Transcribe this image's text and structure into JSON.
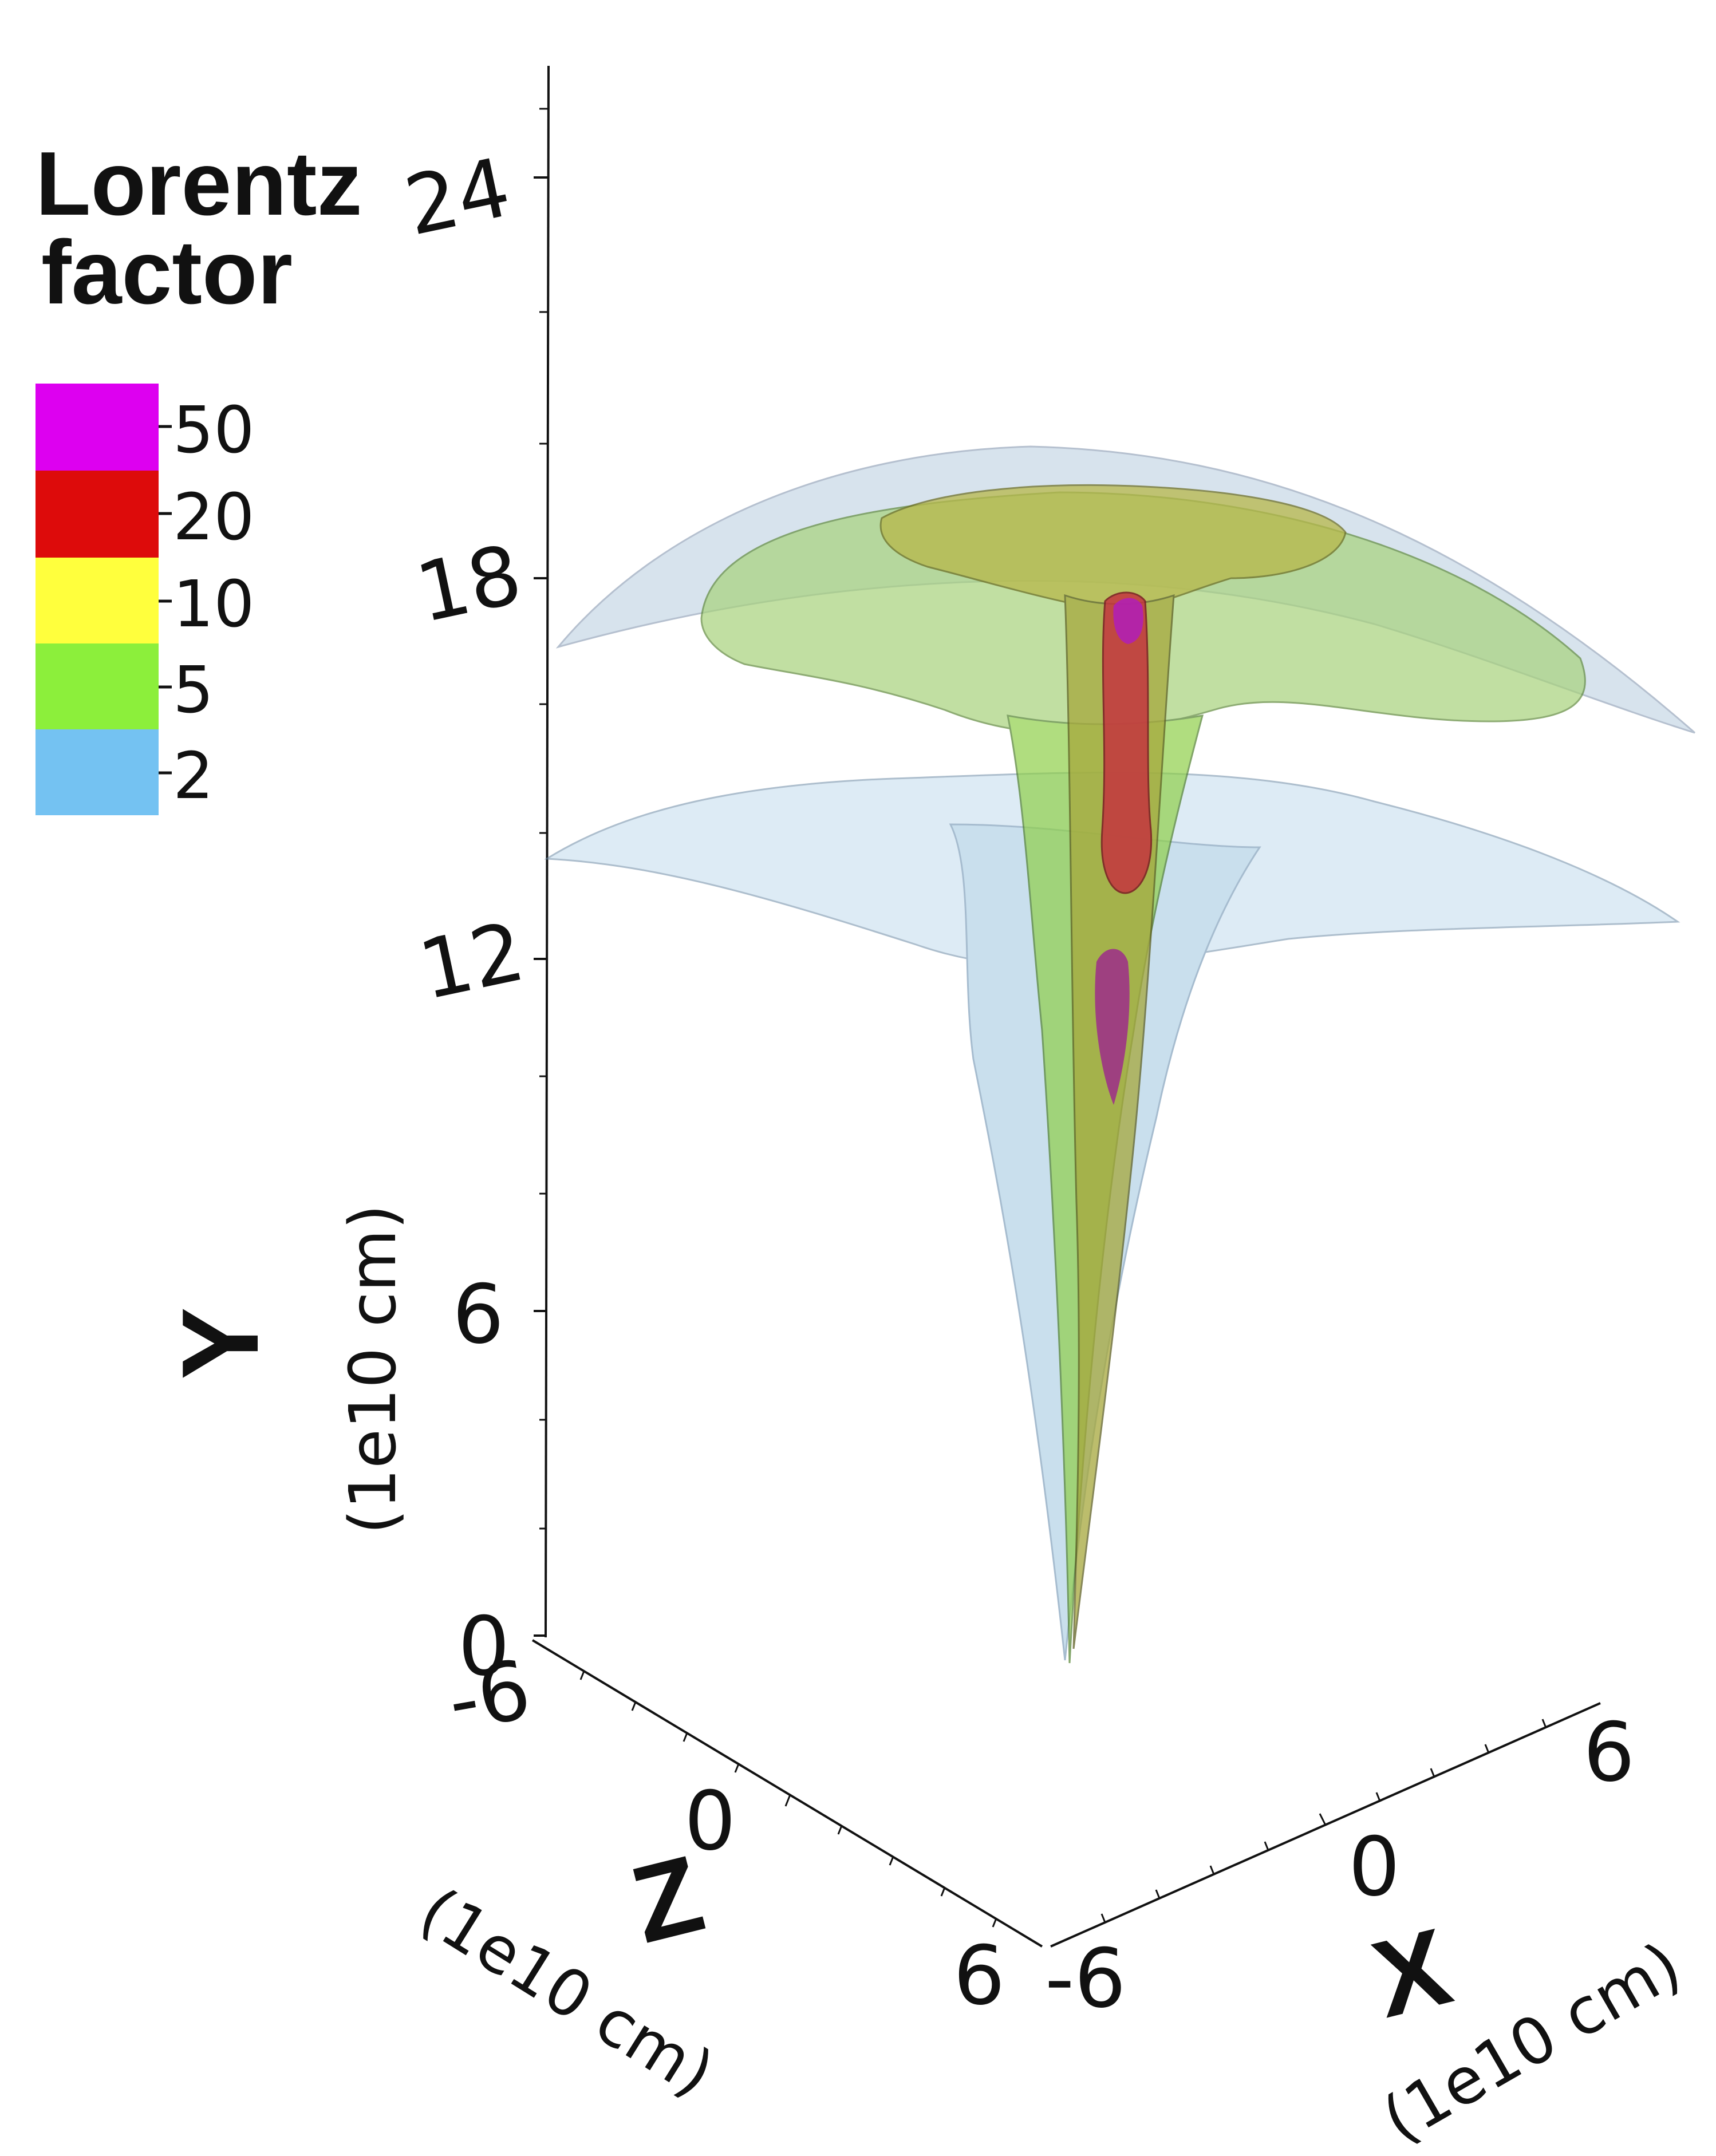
{
  "legend": {
    "title_line1": "Lorentz",
    "title_line2": "factor",
    "entries": [
      {
        "label": "50",
        "color": "#dd00f0"
      },
      {
        "label": "20",
        "color": "#dd0b0b"
      },
      {
        "label": "10",
        "color": "#ffff3d"
      },
      {
        "label": "5",
        "color": "#8cef3b"
      },
      {
        "label": "2",
        "color": "#74c2f2"
      }
    ]
  },
  "axes": {
    "y": {
      "name": "Y",
      "unit": "(1e10 cm)",
      "ticks": [
        "0",
        "6",
        "12",
        "18",
        "24"
      ]
    },
    "z": {
      "name": "Z",
      "unit": "(1e10 cm)",
      "ticks": [
        "-6",
        "0",
        "6"
      ]
    },
    "x": {
      "name": "X",
      "unit": "(1e10 cm)",
      "ticks": [
        "-6",
        "0",
        "6"
      ]
    }
  },
  "isosurfaces": [
    {
      "level": "2",
      "color": "#a6cfe6"
    },
    {
      "level": "5",
      "color": "#7fcf3f"
    },
    {
      "level": "10",
      "color": "#b7b84a"
    },
    {
      "level": "20",
      "color": "#c4353f"
    },
    {
      "level": "50",
      "color": "#b01fb8"
    }
  ]
}
